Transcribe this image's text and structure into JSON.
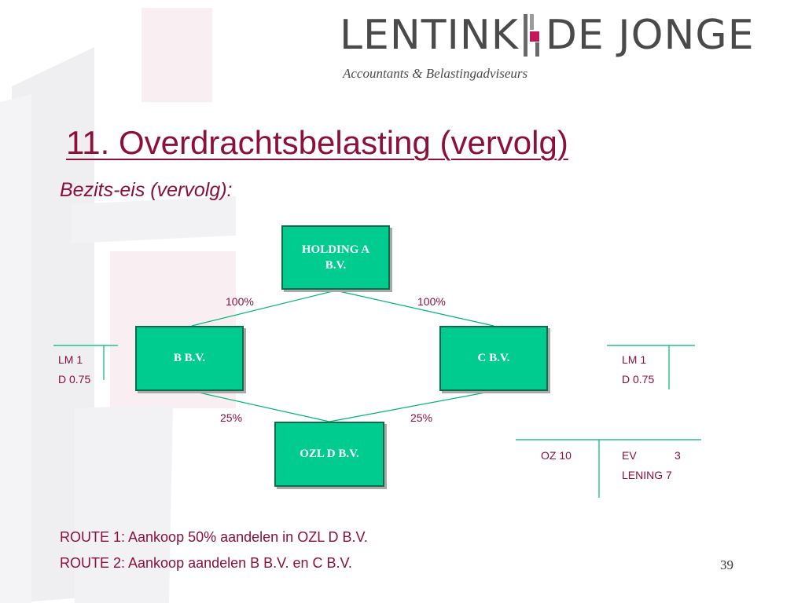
{
  "logo": {
    "name_left": "LENTINK",
    "name_right": "DE JONGE",
    "tagline": "Accountants & Belastingadviseurs"
  },
  "title": "11. Overdrachtsbelasting (vervolg)",
  "subtitle": "Bezits-eis (vervolg):",
  "diagram": {
    "nodes": {
      "holding_line1": "HOLDING A",
      "holding_line2": "B.V.",
      "b": "B  B.V.",
      "c": "C   B.V.",
      "d": "OZL D  B.V."
    },
    "edges": {
      "holding_b": "100%",
      "holding_c": "100%",
      "b_d": "25%",
      "c_d": "25%"
    }
  },
  "balance_b": {
    "debit_1": "LM 1",
    "debit_2": "D 0.75"
  },
  "balance_c": {
    "debit_1": "LM 1",
    "debit_2": "D 0.75"
  },
  "balance_d": {
    "debit": "OZ 10",
    "credit_1_label": "EV",
    "credit_1_value": "3",
    "credit_2": "LENING 7"
  },
  "routes": [
    "ROUTE 1: Aankoop 50% aandelen in OZL D B.V.",
    "ROUTE 2: Aankoop aandelen B B.V. en C B.V."
  ],
  "page_number": "39",
  "colors": {
    "accent": "#8c1038",
    "box": "#00cc8f",
    "box_border": "#0b6b4b",
    "connector": "#00b37a"
  }
}
